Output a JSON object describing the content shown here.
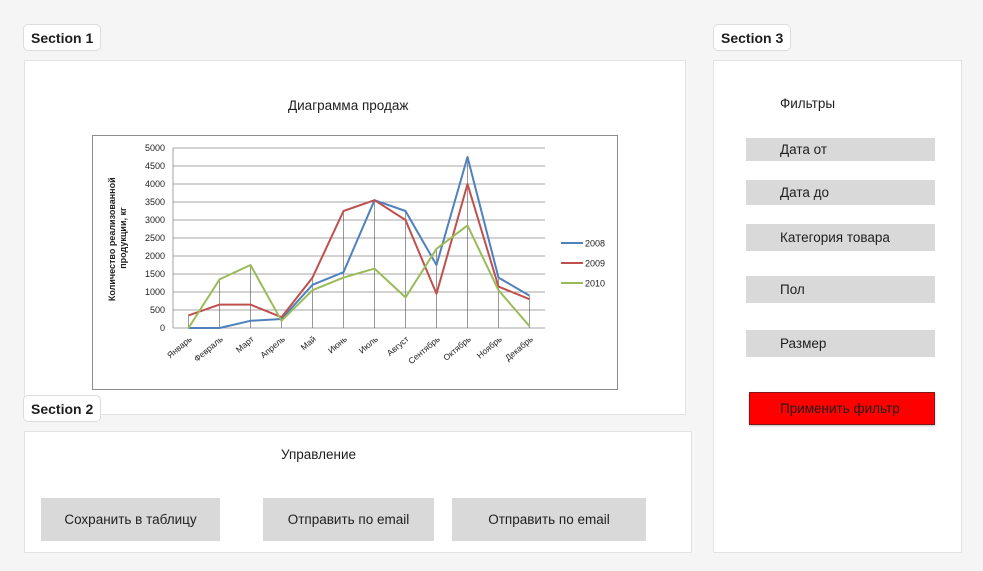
{
  "sections": {
    "s1": "Section 1",
    "s2": "Section 2",
    "s3": "Section 3"
  },
  "section1": {
    "title": "Диаграмма продаж"
  },
  "section2": {
    "title": "Управление",
    "buttons": [
      "Сохранить в таблицу",
      "Отправить по email",
      "Отправить по email"
    ]
  },
  "section3": {
    "title": "Фильтры",
    "filters": [
      "Дата от",
      "Дата до",
      "Категория товара",
      "Пол",
      "Размер"
    ],
    "apply": "Применить фильтр",
    "apply_color": "#ff0000"
  },
  "chart_data": {
    "type": "line",
    "title": "",
    "xlabel": "",
    "ylabel": "Количество реализованной продукции, кг",
    "ylim": [
      0,
      5000
    ],
    "yticks": [
      "0",
      "500",
      "1000",
      "1500",
      "2000",
      "2500",
      "3000",
      "3500",
      "4000",
      "4500",
      "5000"
    ],
    "categories": [
      "Январь",
      "Февраль",
      "Март",
      "Апрель",
      "Май",
      "Июнь",
      "Июль",
      "Август",
      "Сентябрь",
      "Октябрь",
      "Ноябрь",
      "Декабрь"
    ],
    "grid": true,
    "legend": "right",
    "series": [
      {
        "name": "2008",
        "color": "#4f81bd",
        "values": [
          0,
          0,
          200,
          250,
          1200,
          1550,
          3550,
          3250,
          1750,
          4750,
          1400,
          900
        ]
      },
      {
        "name": "2009",
        "color": "#c0504d",
        "values": [
          350,
          650,
          650,
          300,
          1400,
          3250,
          3550,
          3000,
          950,
          4000,
          1150,
          800
        ]
      },
      {
        "name": "2010",
        "color": "#9bbb59",
        "values": [
          0,
          1350,
          1750,
          200,
          1050,
          1400,
          1650,
          850,
          2200,
          2850,
          1050,
          50
        ]
      }
    ]
  }
}
